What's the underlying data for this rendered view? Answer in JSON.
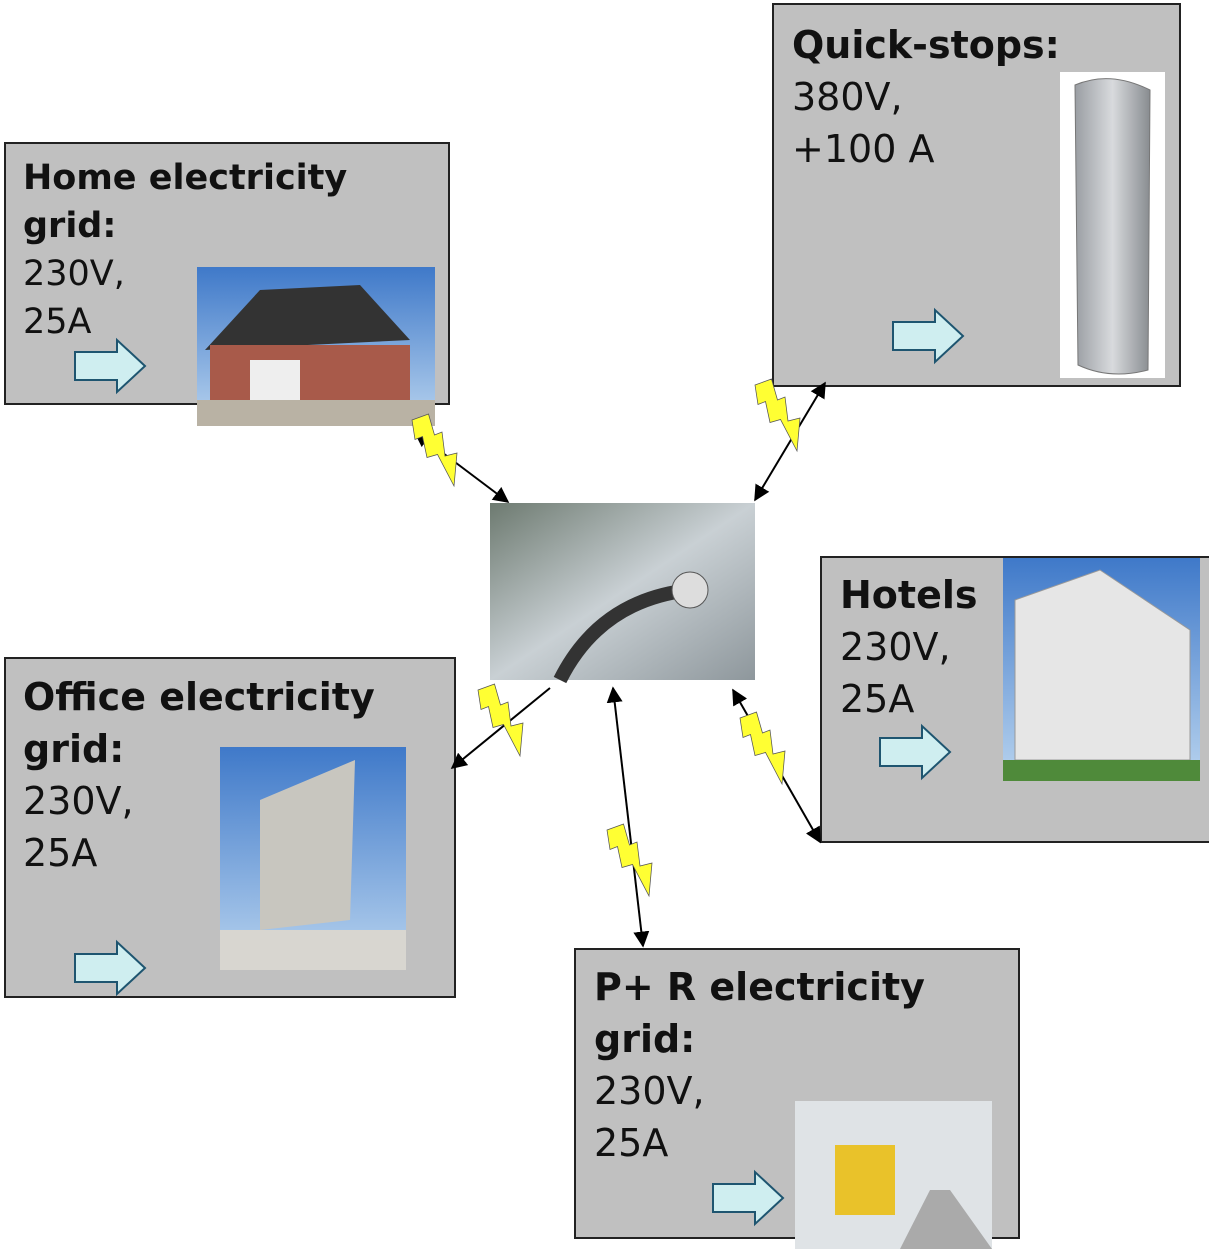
{
  "nodes": [
    {
      "title": [
        "Home electricity",
        "grid:"
      ],
      "lines": [
        "230V,",
        "25A"
      ]
    },
    {
      "title": [
        "Quick-stops:"
      ],
      "lines": [
        "380V,",
        "+100 A"
      ]
    },
    {
      "title": [
        "Hotels"
      ],
      "lines": [
        "230V,",
        "25A"
      ]
    },
    {
      "title": [
        "Office electricity",
        "grid:"
      ],
      "lines": [
        "230V,",
        "25A"
      ]
    },
    {
      "title": [
        "P+ R electricity",
        "grid:"
      ],
      "lines": [
        "230V,",
        "25A"
      ]
    }
  ]
}
